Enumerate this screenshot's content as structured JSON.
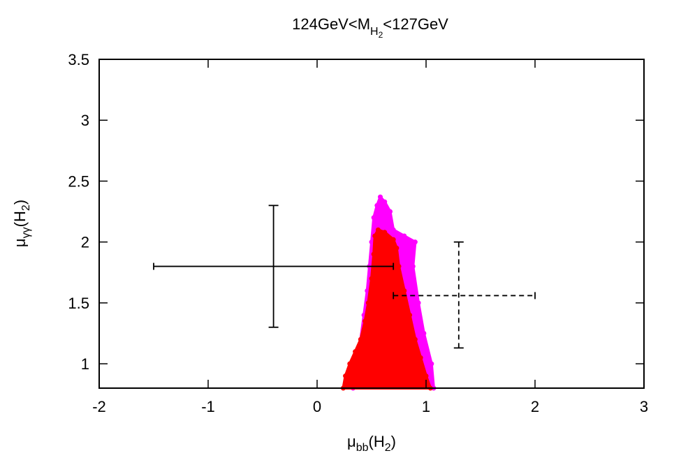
{
  "chart_data": {
    "type": "scatter",
    "title_parts": {
      "pre": "124GeV<M",
      "sub": "H",
      "subsub": "2",
      "post": "<127GeV"
    },
    "xlabel_parts": {
      "main": "μ",
      "sub": "bb",
      "paren_open": "(H",
      "paren_sub": "2",
      "paren_close": ")"
    },
    "ylabel_parts": {
      "main": "μ",
      "sub": "γγ",
      "paren_open": "(H",
      "paren_sub": "2",
      "paren_close": ")"
    },
    "xlim": [
      -2,
      3
    ],
    "ylim": [
      0.8,
      3.5
    ],
    "xticks": [
      {
        "value": -2,
        "label": "-2"
      },
      {
        "value": -1,
        "label": "-1"
      },
      {
        "value": 0,
        "label": "0"
      },
      {
        "value": 1,
        "label": "1"
      },
      {
        "value": 2,
        "label": "2"
      },
      {
        "value": 3,
        "label": "3"
      }
    ],
    "yticks": [
      {
        "value": 1,
        "label": "1"
      },
      {
        "value": 1.5,
        "label": "1.5"
      },
      {
        "value": 2,
        "label": "2"
      },
      {
        "value": 2.5,
        "label": "2.5"
      },
      {
        "value": 3,
        "label": "3"
      },
      {
        "value": 3.5,
        "label": "3.5"
      }
    ],
    "grid": false,
    "regions": [
      {
        "color": "#ff00ff",
        "outline": [
          [
            0.33,
            0.8
          ],
          [
            0.36,
            1.0
          ],
          [
            0.4,
            1.2
          ],
          [
            0.43,
            1.4
          ],
          [
            0.46,
            1.6
          ],
          [
            0.48,
            1.8
          ],
          [
            0.5,
            2.0
          ],
          [
            0.52,
            2.2
          ],
          [
            0.55,
            2.3
          ],
          [
            0.58,
            2.37
          ],
          [
            0.62,
            2.33
          ],
          [
            0.67,
            2.25
          ],
          [
            0.7,
            2.1
          ],
          [
            0.8,
            2.05
          ],
          [
            0.9,
            2.0
          ],
          [
            0.88,
            1.8
          ],
          [
            0.93,
            1.5
          ],
          [
            0.98,
            1.25
          ],
          [
            1.05,
            1.0
          ],
          [
            1.07,
            0.8
          ]
        ]
      },
      {
        "color": "#ff0000",
        "outline": [
          [
            0.24,
            0.8
          ],
          [
            0.26,
            0.9
          ],
          [
            0.3,
            1.0
          ],
          [
            0.35,
            1.1
          ],
          [
            0.4,
            1.2
          ],
          [
            0.44,
            1.35
          ],
          [
            0.47,
            1.5
          ],
          [
            0.5,
            1.7
          ],
          [
            0.52,
            1.9
          ],
          [
            0.53,
            2.05
          ],
          [
            0.56,
            2.1
          ],
          [
            0.62,
            2.08
          ],
          [
            0.7,
            2.02
          ],
          [
            0.73,
            1.95
          ],
          [
            0.75,
            1.8
          ],
          [
            0.8,
            1.6
          ],
          [
            0.85,
            1.4
          ],
          [
            0.9,
            1.2
          ],
          [
            0.95,
            1.05
          ],
          [
            1.0,
            0.9
          ],
          [
            1.04,
            0.8
          ]
        ]
      }
    ],
    "error_bars": [
      {
        "x": -0.4,
        "y": 1.8,
        "xerr_low": -1.5,
        "xerr_high": 0.7,
        "yerr_low": 1.3,
        "yerr_high": 2.3,
        "style": "solid",
        "color": "#000000"
      },
      {
        "x": 1.3,
        "y": 1.56,
        "xerr_low": 0.7,
        "xerr_high": 2.0,
        "yerr_low": 1.13,
        "yerr_high": 2.0,
        "style": "dashed",
        "color": "#000000"
      }
    ]
  }
}
